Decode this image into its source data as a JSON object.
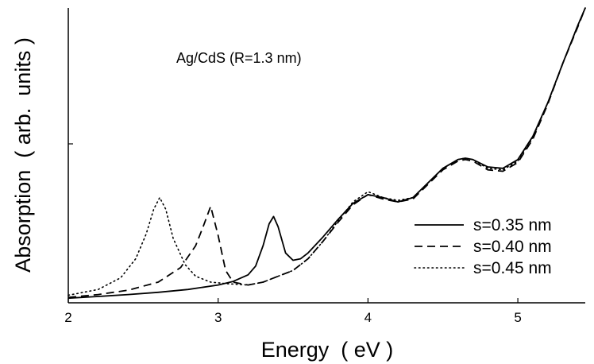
{
  "chart_data": {
    "type": "line",
    "title": "",
    "annotation": "Ag/CdS (R=1.3 nm)",
    "xlabel": "Energy  ( eV )",
    "ylabel": "Absorption  ( arb.  units )",
    "xlim": [
      2.0,
      5.45
    ],
    "ylim": [
      0.0,
      2.0
    ],
    "xticks": [
      2,
      3,
      4,
      5
    ],
    "xtick_labels": [
      "2",
      "3",
      "4",
      "5"
    ],
    "grid": false,
    "legend_position": "lower-right",
    "series": [
      {
        "name": "s=0.35 nm",
        "style": "solid",
        "x": [
          2.0,
          2.2,
          2.4,
          2.6,
          2.8,
          3.0,
          3.1,
          3.2,
          3.25,
          3.3,
          3.34,
          3.37,
          3.4,
          3.45,
          3.5,
          3.55,
          3.6,
          3.7,
          3.8,
          3.9,
          4.0,
          4.1,
          4.2,
          4.3,
          4.4,
          4.5,
          4.6,
          4.65,
          4.7,
          4.8,
          4.9,
          5.0,
          5.1,
          5.2,
          5.3,
          5.4,
          5.45
        ],
        "y": [
          0.01,
          0.022,
          0.035,
          0.05,
          0.07,
          0.1,
          0.125,
          0.17,
          0.23,
          0.37,
          0.52,
          0.57,
          0.5,
          0.32,
          0.27,
          0.28,
          0.32,
          0.43,
          0.55,
          0.66,
          0.72,
          0.7,
          0.67,
          0.7,
          0.8,
          0.9,
          0.96,
          0.97,
          0.96,
          0.91,
          0.9,
          0.96,
          1.12,
          1.35,
          1.62,
          1.88,
          2.0
        ]
      },
      {
        "name": "s=0.40 nm",
        "style": "dashed",
        "x": [
          2.0,
          2.2,
          2.4,
          2.6,
          2.75,
          2.85,
          2.9,
          2.95,
          3.0,
          3.05,
          3.1,
          3.2,
          3.3,
          3.4,
          3.5,
          3.6,
          3.7,
          3.8,
          3.9,
          4.0,
          4.1,
          4.2,
          4.3,
          4.4,
          4.5,
          4.6,
          4.65,
          4.7,
          4.8,
          4.9,
          5.0,
          5.1,
          5.2,
          5.3,
          5.4,
          5.45
        ],
        "y": [
          0.015,
          0.035,
          0.065,
          0.12,
          0.22,
          0.37,
          0.5,
          0.64,
          0.44,
          0.2,
          0.12,
          0.1,
          0.12,
          0.16,
          0.2,
          0.28,
          0.4,
          0.53,
          0.65,
          0.72,
          0.69,
          0.67,
          0.69,
          0.79,
          0.89,
          0.95,
          0.96,
          0.95,
          0.89,
          0.88,
          0.94,
          1.1,
          1.34,
          1.62,
          1.87,
          2.0
        ]
      },
      {
        "name": "s=0.45 nm",
        "style": "dotted",
        "x": [
          2.0,
          2.2,
          2.35,
          2.45,
          2.52,
          2.57,
          2.61,
          2.65,
          2.7,
          2.78,
          2.85,
          2.95,
          3.05,
          3.2,
          3.3,
          3.4,
          3.5,
          3.6,
          3.7,
          3.8,
          3.9,
          4.0,
          4.1,
          4.2,
          4.3,
          4.4,
          4.5,
          4.6,
          4.65,
          4.7,
          4.8,
          4.9,
          5.0,
          5.1,
          5.2,
          5.3,
          5.4,
          5.45
        ],
        "y": [
          0.03,
          0.07,
          0.15,
          0.28,
          0.45,
          0.62,
          0.7,
          0.62,
          0.42,
          0.24,
          0.16,
          0.12,
          0.11,
          0.1,
          0.12,
          0.16,
          0.2,
          0.28,
          0.4,
          0.54,
          0.67,
          0.74,
          0.7,
          0.68,
          0.7,
          0.8,
          0.9,
          0.96,
          0.97,
          0.96,
          0.9,
          0.89,
          0.95,
          1.11,
          1.35,
          1.62,
          1.88,
          2.0
        ]
      }
    ]
  }
}
